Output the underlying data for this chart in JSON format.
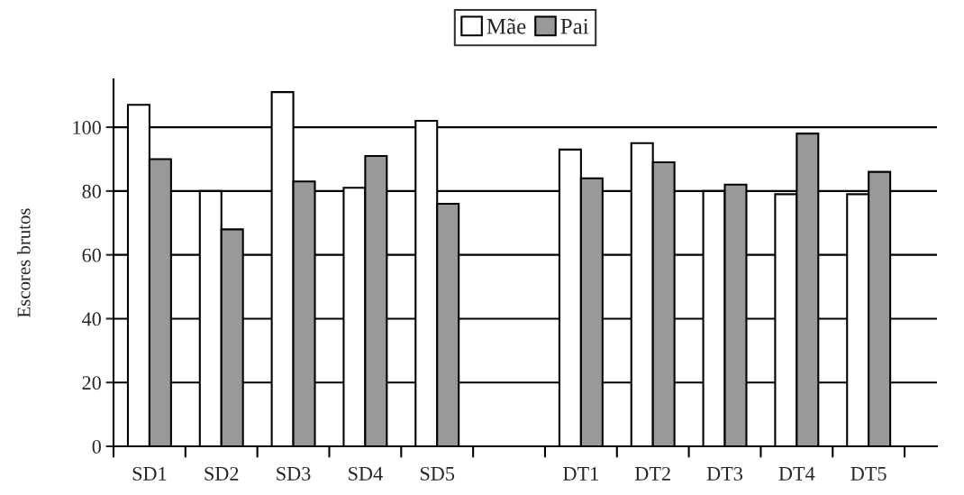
{
  "chart_data": {
    "type": "bar",
    "ylabel": "Escores brutos",
    "categories": [
      "SD1",
      "SD2",
      "SD3",
      "SD4",
      "SD5",
      null,
      "DT1",
      "DT2",
      "DT3",
      "DT4",
      "DT5"
    ],
    "series": [
      {
        "name": "Mãe",
        "color": "#ffffff",
        "values": [
          107,
          80,
          111,
          81,
          102,
          null,
          93,
          95,
          80,
          79,
          79
        ]
      },
      {
        "name": "Pai",
        "color": "#999999",
        "values": [
          90,
          68,
          83,
          91,
          76,
          null,
          84,
          89,
          82,
          98,
          86
        ]
      }
    ],
    "ylim": [
      0,
      115
    ],
    "yticks": [
      0,
      20,
      40,
      60,
      80,
      100
    ],
    "grid": "y",
    "legend": "top"
  }
}
